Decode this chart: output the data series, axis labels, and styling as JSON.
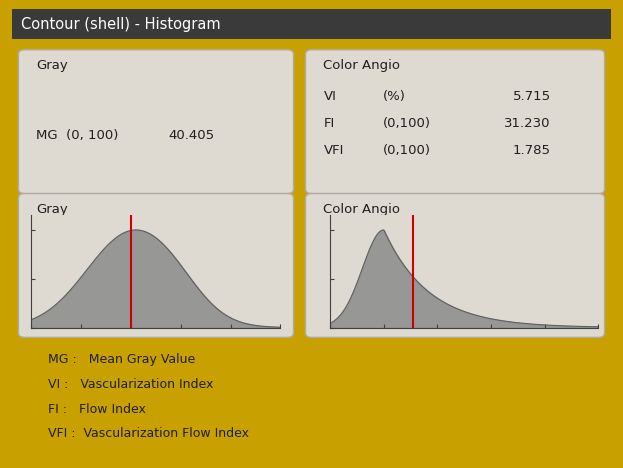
{
  "title": "Contour (shell) - Histogram",
  "title_bg": "#3a3a3a",
  "title_color": "#ffffff",
  "bg_color": "#d4d0c8",
  "panel_bg": "#e8e4dc",
  "border_color": "#a0a0a0",
  "gray_label": "Gray",
  "gray_mg_label": "MG",
  "gray_mg_range": "(0, 100)",
  "gray_mg_value": "40.405",
  "color_angio_label": "Color Angio",
  "vi_label": "VI",
  "vi_range": "(%)",
  "vi_value": "5.715",
  "fi_label": "FI",
  "fi_range": "(0,100)",
  "fi_value": "31.230",
  "vfi_label": "VFI",
  "vfi_range": "(0,100)",
  "vfi_value": "1.785",
  "hist_gray_peak": 40,
  "hist_gray_sigma": 18,
  "hist_color_peak": 20,
  "hist_color_decay": 0.06,
  "red_line_gray": 40,
  "red_line_color": 31,
  "legend_lines": [
    "MG :   Mean Gray Value",
    "VI :   Vascularization Index",
    "FI :   Flow Index",
    "VFI :  Vascularization Flow Index"
  ],
  "hist_fill_color": "#909090",
  "hist_edge_color": "#606060",
  "red_line_color_hex": "#cc0000",
  "outer_border_color": "#c8a000"
}
